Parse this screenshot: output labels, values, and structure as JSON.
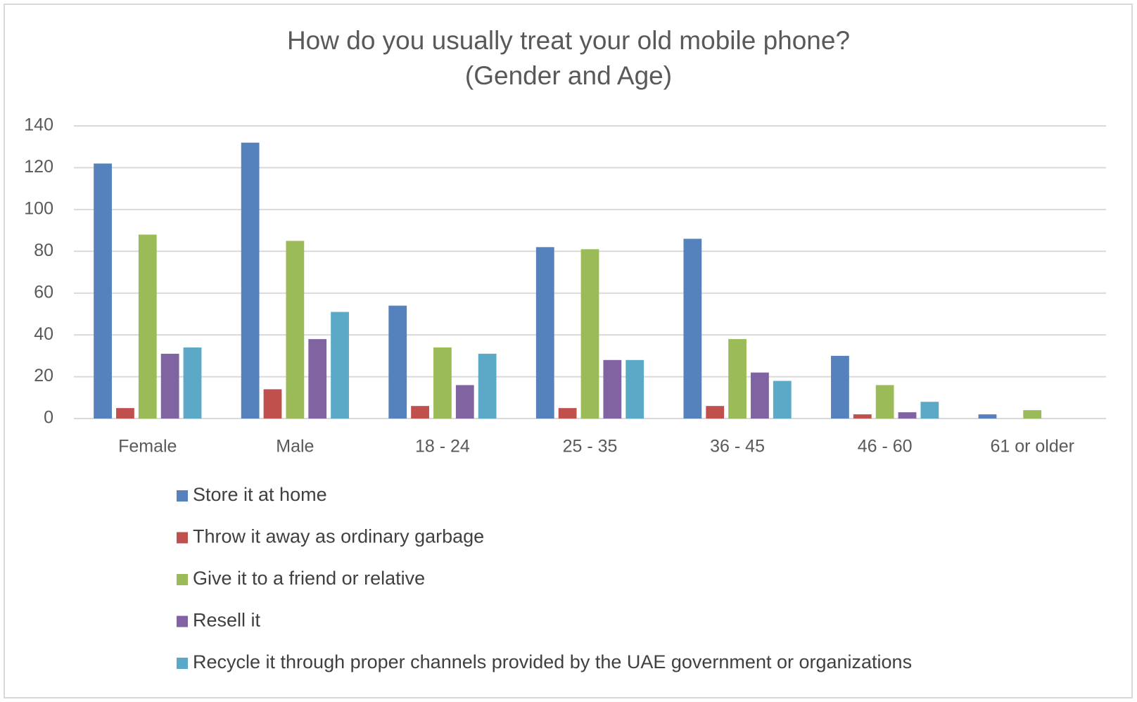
{
  "chart_data": {
    "type": "bar",
    "title": [
      "How do you usually treat your old mobile phone?",
      "(Gender and Age)"
    ],
    "categories": [
      "Female",
      "Male",
      "18 - 24",
      "25 - 35",
      "36 - 45",
      "46 - 60",
      "61 or older"
    ],
    "series": [
      {
        "name": "Store it at home",
        "color": "#5581bd",
        "values": [
          122,
          132,
          54,
          82,
          86,
          30,
          2
        ]
      },
      {
        "name": "Throw it away as ordinary garbage",
        "color": "#c0504d",
        "values": [
          5,
          14,
          6,
          5,
          6,
          2,
          0
        ]
      },
      {
        "name": "Give it to a friend or relative",
        "color": "#9bbb59",
        "values": [
          88,
          85,
          34,
          81,
          38,
          16,
          4
        ]
      },
      {
        "name": "Resell it",
        "color": "#8064a2",
        "values": [
          31,
          38,
          16,
          28,
          22,
          3,
          0
        ]
      },
      {
        "name": "Recycle it through proper channels provided by the UAE government or organizations",
        "color": "#5ba9c6",
        "values": [
          34,
          51,
          31,
          28,
          18,
          8,
          0
        ]
      }
    ],
    "ylim": [
      0,
      140
    ],
    "yticks": [
      0,
      20,
      40,
      60,
      80,
      100,
      120,
      140
    ],
    "grid": true,
    "legend": "bottom"
  }
}
